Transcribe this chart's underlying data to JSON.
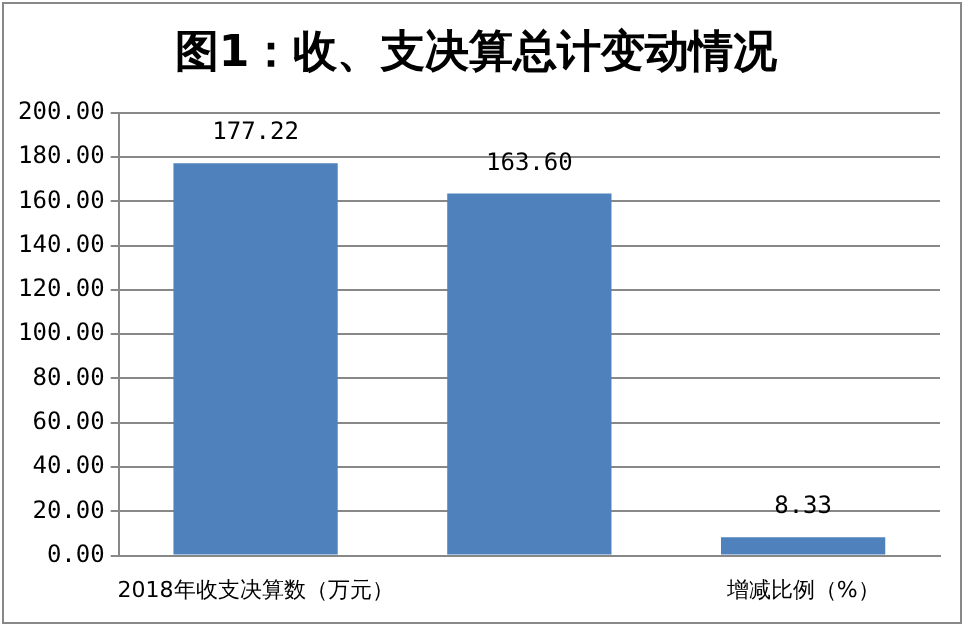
{
  "chart_data": {
    "type": "bar",
    "title": "图1：收、支决算总计变动情况",
    "categories": [
      "2018年收支决算数（万元）",
      null,
      "增减比例（%）"
    ],
    "values": [
      177.22,
      163.6,
      8.33
    ],
    "value_labels": [
      "177.22",
      "163.60",
      "8.33"
    ],
    "color": "#4f81bd",
    "ylim": [
      0,
      200
    ],
    "yticks": [
      {
        "value": 0,
        "label": "0.00"
      },
      {
        "value": 20,
        "label": "20.00"
      },
      {
        "value": 40,
        "label": "40.00"
      },
      {
        "value": 60,
        "label": "60.00"
      },
      {
        "value": 80,
        "label": "80.00"
      },
      {
        "value": 100,
        "label": "100.00"
      },
      {
        "value": 120,
        "label": "120.00"
      },
      {
        "value": 140,
        "label": "140.00"
      },
      {
        "value": 160,
        "label": "160.00"
      },
      {
        "value": 180,
        "label": "180.00"
      },
      {
        "value": 200,
        "label": "200.00"
      }
    ],
    "grid": "y"
  }
}
